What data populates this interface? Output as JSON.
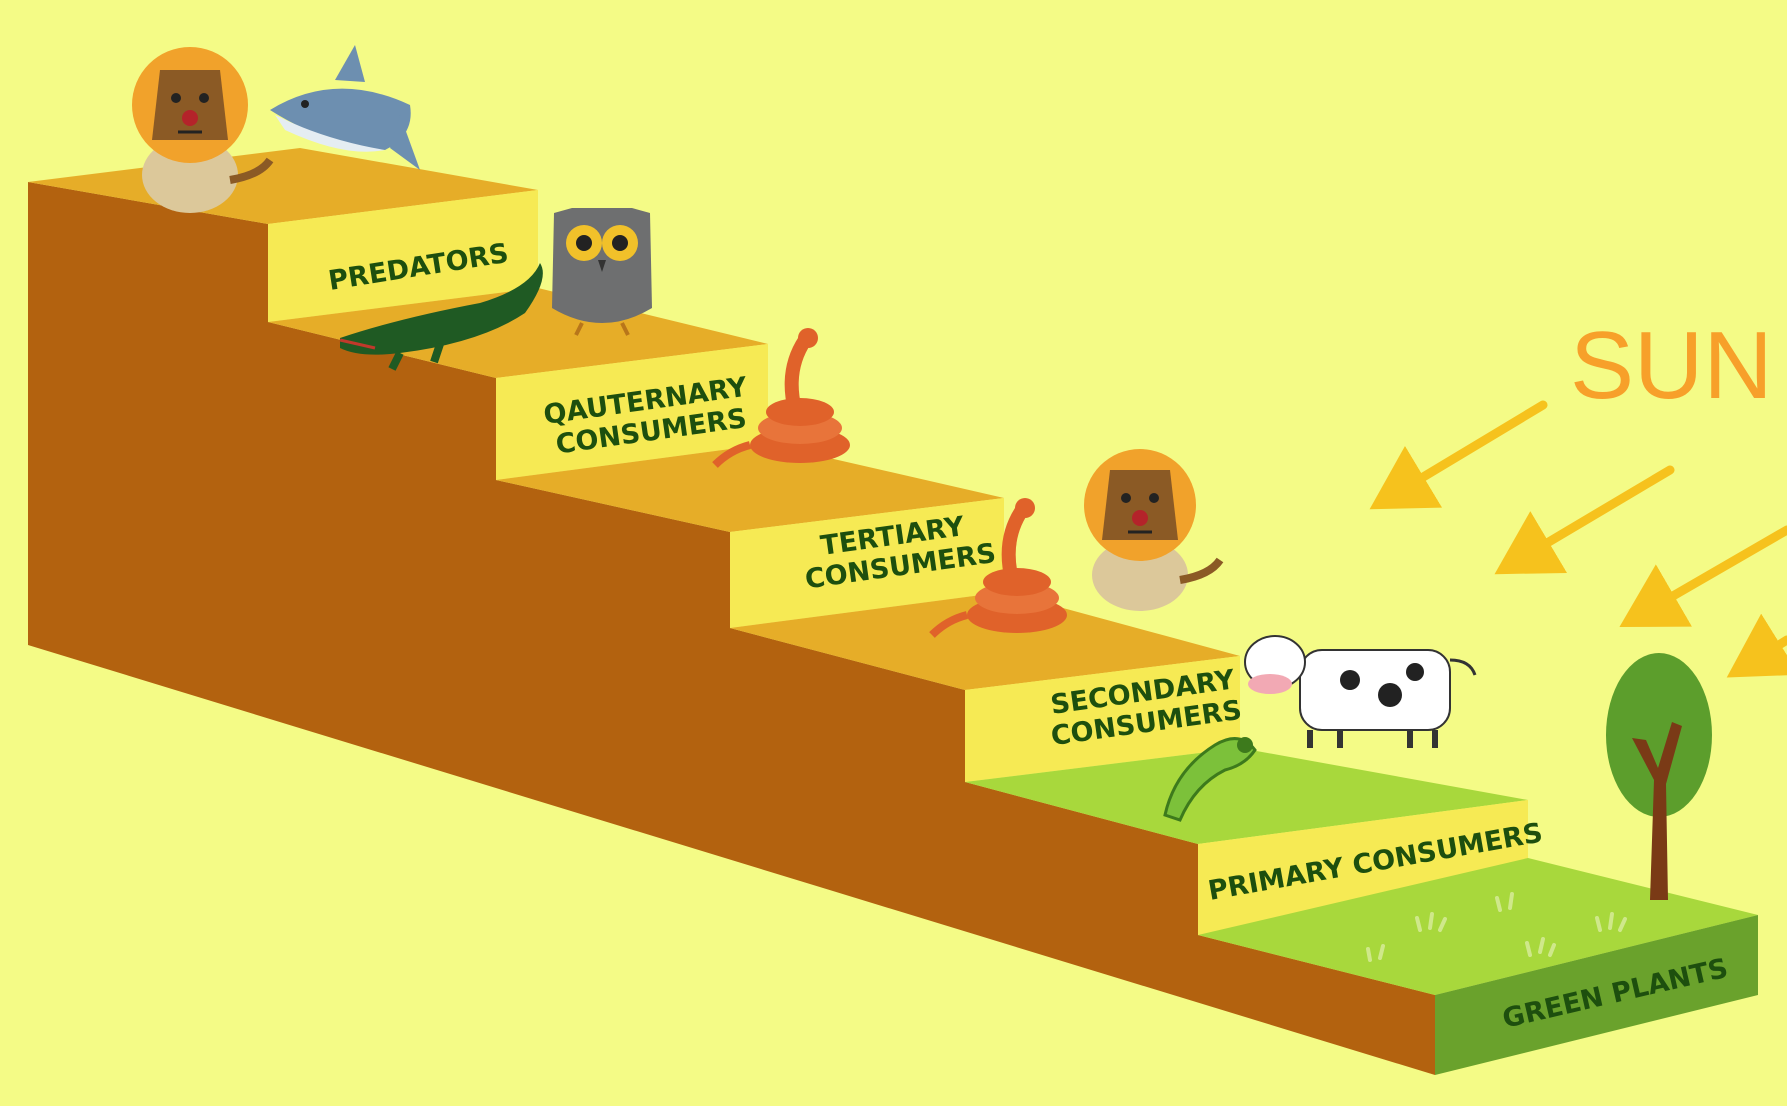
{
  "sun_label": "SUN",
  "levels": [
    {
      "id": "predators",
      "line1": "PREDATORS",
      "line2": ""
    },
    {
      "id": "qauternary",
      "line1": "QAUTERNARY",
      "line2": "CONSUMERS"
    },
    {
      "id": "tertiary",
      "line1": "TERTIARY",
      "line2": "CONSUMERS"
    },
    {
      "id": "secondary",
      "line1": "SECONDARY",
      "line2": "CONSUMERS"
    },
    {
      "id": "primary",
      "line1": "PRIMARY CONSUMERS",
      "line2": ""
    },
    {
      "id": "green-plants",
      "line1": "GREEN PLANTS",
      "line2": ""
    }
  ],
  "colors": {
    "background": "#f4fb86",
    "stair_side": "#b3620f",
    "step_top": "#e6ad28",
    "riser": "#f6ea54",
    "grass_top": "#a8d83c",
    "grass_front": "#6aa22c",
    "label_text": "#1d4f0e",
    "sun": "#f7a02a",
    "arrow": "#f6c21d"
  }
}
